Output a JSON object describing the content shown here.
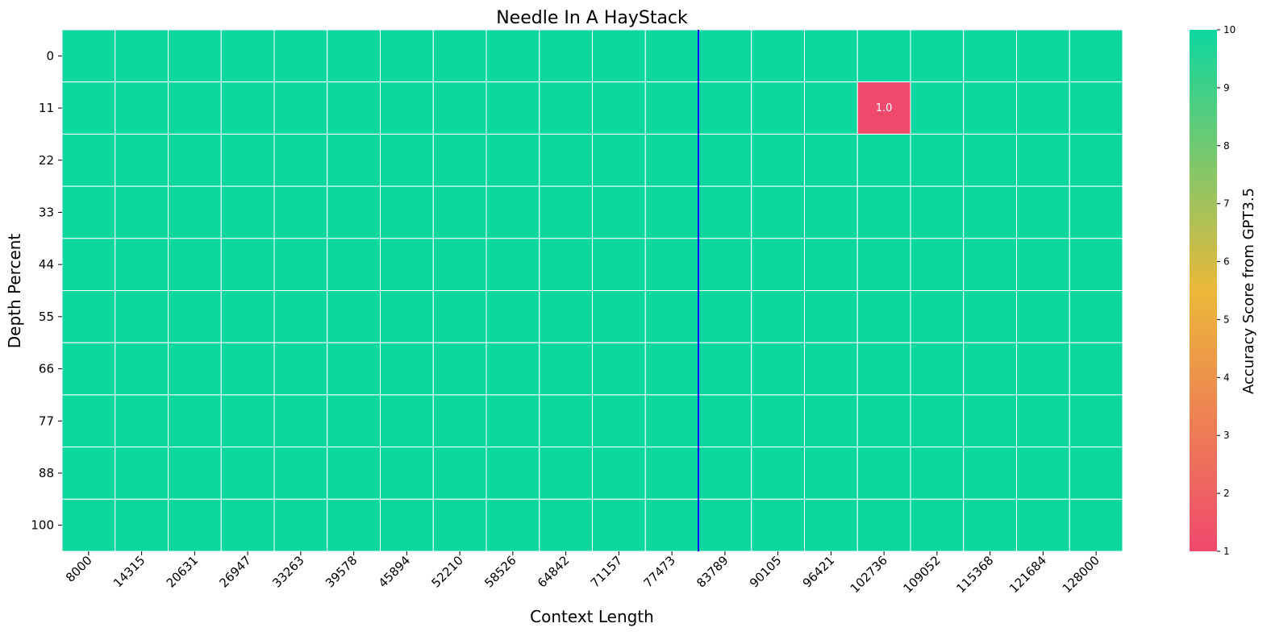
{
  "chart_data": {
    "type": "heatmap",
    "title": "Needle In A HayStack",
    "xlabel": "Context Length",
    "ylabel": "Depth Percent",
    "x_categories": [
      "8000",
      "14315",
      "20631",
      "26947",
      "33263",
      "39578",
      "45894",
      "52210",
      "58526",
      "64842",
      "71157",
      "77473",
      "83789",
      "90105",
      "96421",
      "102736",
      "109052",
      "115368",
      "121684",
      "128000"
    ],
    "y_categories": [
      "0",
      "11",
      "22",
      "33",
      "44",
      "55",
      "66",
      "77",
      "88",
      "100"
    ],
    "default_value": 10,
    "values": [
      [
        10,
        10,
        10,
        10,
        10,
        10,
        10,
        10,
        10,
        10,
        10,
        10,
        10,
        10,
        10,
        10,
        10,
        10,
        10,
        10
      ],
      [
        10,
        10,
        10,
        10,
        10,
        10,
        10,
        10,
        10,
        10,
        10,
        10,
        10,
        10,
        10,
        1,
        10,
        10,
        10,
        10
      ],
      [
        10,
        10,
        10,
        10,
        10,
        10,
        10,
        10,
        10,
        10,
        10,
        10,
        10,
        10,
        10,
        10,
        10,
        10,
        10,
        10
      ],
      [
        10,
        10,
        10,
        10,
        10,
        10,
        10,
        10,
        10,
        10,
        10,
        10,
        10,
        10,
        10,
        10,
        10,
        10,
        10,
        10
      ],
      [
        10,
        10,
        10,
        10,
        10,
        10,
        10,
        10,
        10,
        10,
        10,
        10,
        10,
        10,
        10,
        10,
        10,
        10,
        10,
        10
      ],
      [
        10,
        10,
        10,
        10,
        10,
        10,
        10,
        10,
        10,
        10,
        10,
        10,
        10,
        10,
        10,
        10,
        10,
        10,
        10,
        10
      ],
      [
        10,
        10,
        10,
        10,
        10,
        10,
        10,
        10,
        10,
        10,
        10,
        10,
        10,
        10,
        10,
        10,
        10,
        10,
        10,
        10
      ],
      [
        10,
        10,
        10,
        10,
        10,
        10,
        10,
        10,
        10,
        10,
        10,
        10,
        10,
        10,
        10,
        10,
        10,
        10,
        10,
        10
      ],
      [
        10,
        10,
        10,
        10,
        10,
        10,
        10,
        10,
        10,
        10,
        10,
        10,
        10,
        10,
        10,
        10,
        10,
        10,
        10,
        10
      ],
      [
        10,
        10,
        10,
        10,
        10,
        10,
        10,
        10,
        10,
        10,
        10,
        10,
        10,
        10,
        10,
        10,
        10,
        10,
        10,
        10
      ]
    ],
    "annotations": [
      {
        "x": "102736",
        "y": "11",
        "text": "1.0"
      }
    ],
    "vertical_marker_between": [
      "77473",
      "83789"
    ],
    "vertical_marker_color": "#0000ff",
    "colorbar": {
      "label": "Accuracy Score from GPT3.5",
      "range": [
        1,
        10
      ],
      "ticks": [
        "1",
        "2",
        "3",
        "4",
        "5",
        "6",
        "7",
        "8",
        "9",
        "10"
      ],
      "colors": [
        "#F0496E",
        "#EBB839",
        "#0CD79F"
      ]
    },
    "grid_line_color": "#ffffff"
  }
}
